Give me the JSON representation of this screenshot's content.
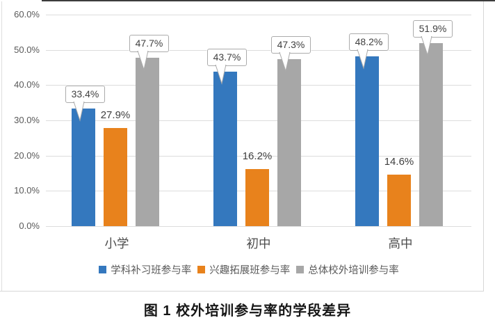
{
  "figure": {
    "caption": "图 1  校外培训参与率的学段差异"
  },
  "chart_data": {
    "type": "bar",
    "title": "",
    "xlabel": "",
    "ylabel": "",
    "categories": [
      "小学",
      "初中",
      "高中"
    ],
    "series": [
      {
        "name": "学科补习班参与率",
        "color": "#3478be",
        "values": [
          33.4,
          43.7,
          48.2
        ],
        "labels": [
          "33.4%",
          "43.7%",
          "48.2%"
        ],
        "label_style": "callout"
      },
      {
        "name": "兴趣拓展班参与率",
        "color": "#e8821c",
        "values": [
          27.9,
          16.2,
          14.6
        ],
        "labels": [
          "27.9%",
          "16.2%",
          "14.6%"
        ],
        "label_style": "plain"
      },
      {
        "name": "总体校外培训参与率",
        "color": "#a7a7a7",
        "values": [
          47.7,
          47.3,
          51.9
        ],
        "labels": [
          "47.7%",
          "47.3%",
          "51.9%"
        ],
        "label_style": "callout"
      }
    ],
    "ylim": [
      0,
      60
    ],
    "ytick_step": 10,
    "ytick_labels": [
      "0.0%",
      "10.0%",
      "20.0%",
      "30.0%",
      "40.0%",
      "50.0%",
      "60.0%"
    ],
    "grid": true,
    "legend_position": "bottom"
  }
}
